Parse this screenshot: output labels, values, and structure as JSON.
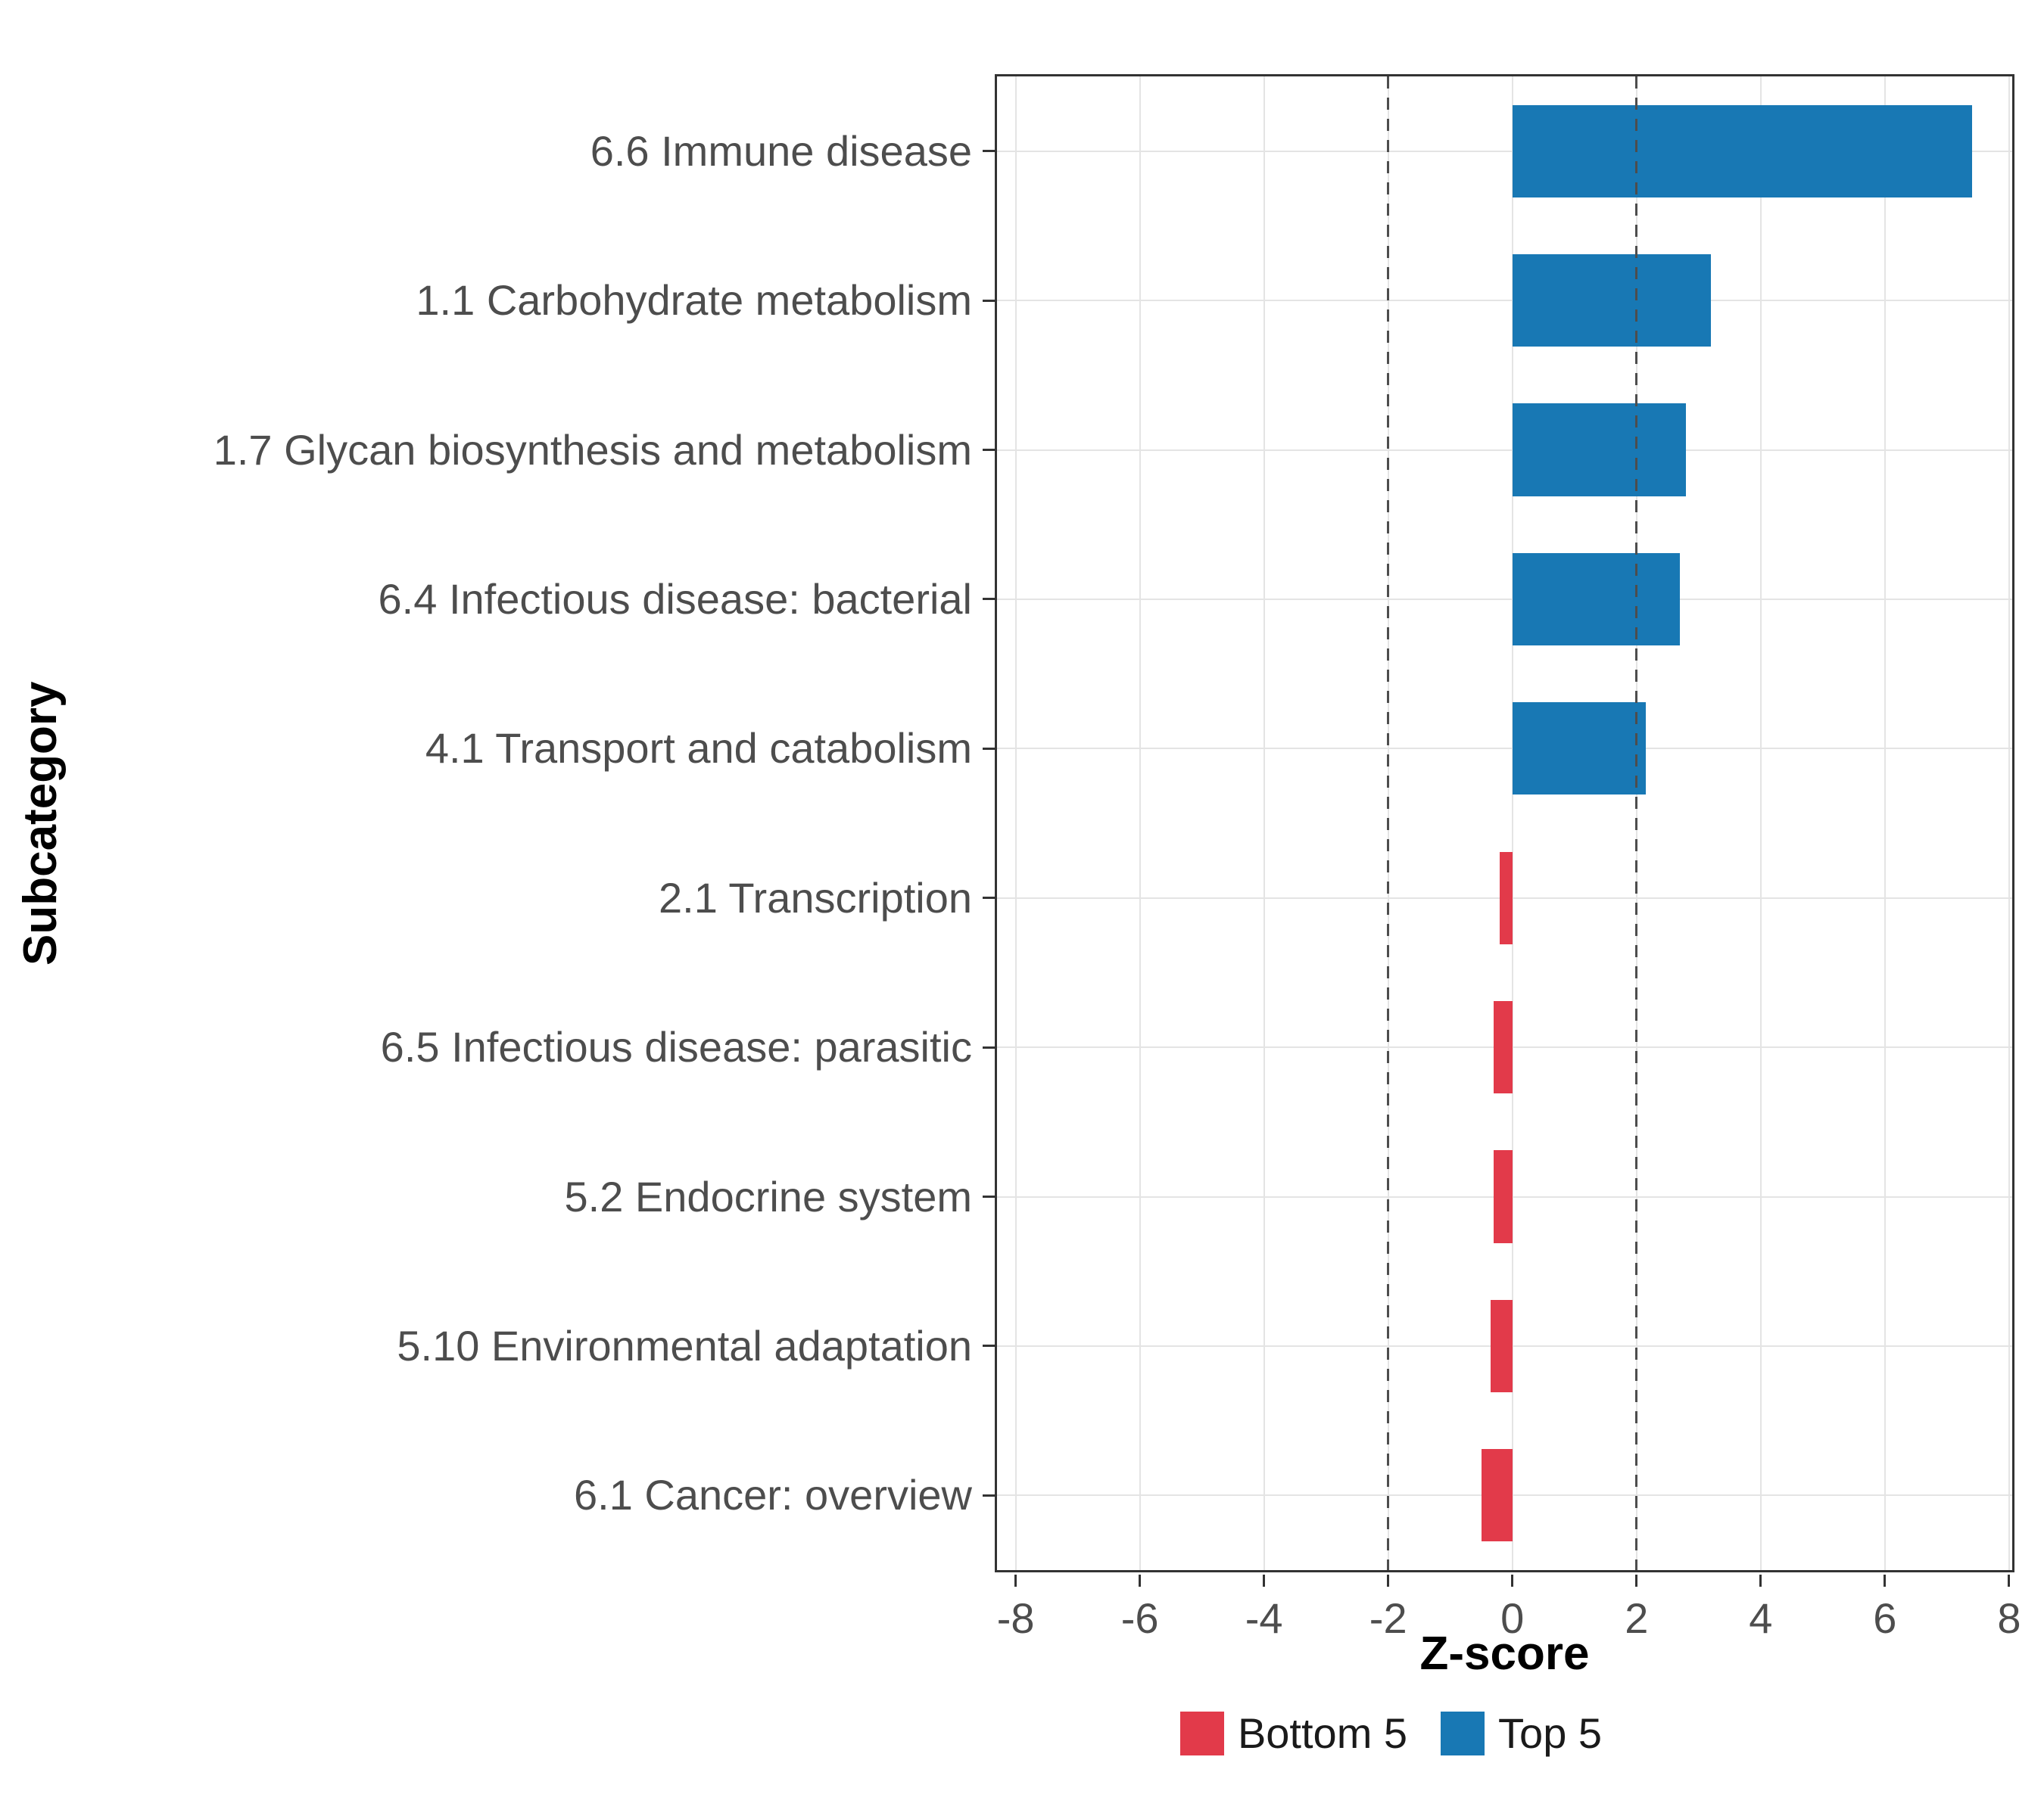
{
  "chart_data": {
    "type": "bar",
    "orientation": "horizontal",
    "title": "",
    "xlabel": "Z-score",
    "ylabel": "Subcategory",
    "categories": [
      "6.6 Immune disease",
      "1.1 Carbohydrate metabolism",
      "1.7 Glycan biosynthesis and metabolism",
      "6.4 Infectious disease: bacterial",
      "4.1 Transport and catabolism",
      "2.1 Transcription",
      "6.5 Infectious disease: parasitic",
      "5.2 Endocrine system",
      "5.10 Environmental adaptation",
      "6.1 Cancer: overview"
    ],
    "values": [
      7.4,
      3.2,
      2.8,
      2.7,
      2.15,
      -0.2,
      -0.3,
      -0.3,
      -0.35,
      -0.5
    ],
    "groups": [
      "Top 5",
      "Top 5",
      "Top 5",
      "Top 5",
      "Top 5",
      "Bottom 5",
      "Bottom 5",
      "Bottom 5",
      "Bottom 5",
      "Bottom 5"
    ],
    "group_colors": {
      "Top 5": "#1878b4",
      "Bottom 5": "#e23a4a"
    },
    "x_ticks": [
      -8,
      -6,
      -4,
      -2,
      0,
      2,
      4,
      6,
      8
    ],
    "xlim": [
      -8.3,
      8.05
    ],
    "reference_lines": [
      -2,
      2
    ],
    "grid": true,
    "bar_fraction": 0.62,
    "legend": {
      "position": "bottom",
      "entries": [
        {
          "label": "Bottom 5",
          "color": "#e23a4a"
        },
        {
          "label": "Top 5",
          "color": "#1878b4"
        }
      ]
    }
  }
}
